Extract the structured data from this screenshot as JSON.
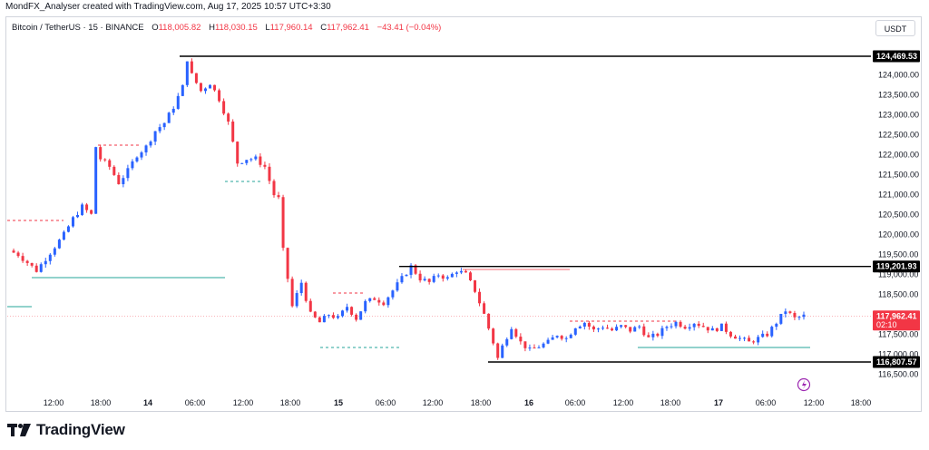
{
  "header": {
    "attribution": "MondFX_Analyser created with TradingView.com, Aug 17, 2025 10:57 UTC+3:30"
  },
  "legend": {
    "symbol": "Bitcoin / TetherUS · 15 · BINANCE",
    "open_label": "O",
    "open": "118,005.82",
    "high_label": "H",
    "high": "118,030.15",
    "low_label": "L",
    "low": "117,960.14",
    "close_label": "C",
    "close": "117,962.41",
    "change": "−43.41 (−0.04%)"
  },
  "currency": "USDT",
  "footer": {
    "brand": "TradingView"
  },
  "colors": {
    "up": "#2962ff",
    "down": "#f23645",
    "level_line": "#000000",
    "support_line": "#26a69a",
    "resistance_dash": "#f23645",
    "text": "#131722"
  },
  "chart_data": {
    "type": "candlestick",
    "symbol": "BTCUSDT",
    "timeframe": "15",
    "ylim": [
      116000,
      125200
    ],
    "x_ticks": [
      "12:00",
      "18:00",
      "14",
      "06:00",
      "12:00",
      "18:00",
      "15",
      "06:00",
      "12:00",
      "18:00",
      "16",
      "06:00",
      "12:00",
      "18:00",
      "17",
      "06:00",
      "12:00",
      "18:00"
    ],
    "y_ticks": [
      "124,000.00",
      "123,500.00",
      "123,000.00",
      "122,500.00",
      "122,000.00",
      "121,500.00",
      "121,000.00",
      "120,500.00",
      "120,000.00",
      "119,500.00",
      "119,000.00",
      "118,500.00",
      "117,500.00",
      "117,000.00",
      "116,500.00"
    ],
    "price_labels": [
      {
        "label": "124,469.53",
        "style": "level"
      },
      {
        "label": "119,201.93",
        "style": "level"
      },
      {
        "label": "117,962.41",
        "sub": "02:10",
        "style": "current"
      },
      {
        "label": "116,807.57",
        "style": "level"
      }
    ],
    "close_path": [
      [
        0,
        119600
      ],
      [
        2,
        119500
      ],
      [
        4,
        119300
      ],
      [
        6,
        119100
      ],
      [
        8,
        119400
      ],
      [
        10,
        119700
      ],
      [
        12,
        120000
      ],
      [
        14,
        120400
      ],
      [
        16,
        120700
      ],
      [
        18,
        120500
      ],
      [
        19,
        122200
      ],
      [
        20,
        121900
      ],
      [
        22,
        121700
      ],
      [
        24,
        121300
      ],
      [
        26,
        121600
      ],
      [
        28,
        122000
      ],
      [
        30,
        122200
      ],
      [
        32,
        122600
      ],
      [
        34,
        122800
      ],
      [
        36,
        123200
      ],
      [
        38,
        123700
      ],
      [
        39,
        124400
      ],
      [
        40,
        124000
      ],
      [
        42,
        123600
      ],
      [
        44,
        123800
      ],
      [
        46,
        123400
      ],
      [
        48,
        122800
      ],
      [
        50,
        121800
      ],
      [
        52,
        121900
      ],
      [
        54,
        121900
      ],
      [
        56,
        121700
      ],
      [
        58,
        121000
      ],
      [
        59,
        120900
      ],
      [
        60,
        119600
      ],
      [
        62,
        118200
      ],
      [
        64,
        118800
      ],
      [
        66,
        118000
      ],
      [
        68,
        117800
      ],
      [
        70,
        118000
      ],
      [
        72,
        117900
      ],
      [
        74,
        118200
      ],
      [
        76,
        117900
      ],
      [
        78,
        118300
      ],
      [
        80,
        118400
      ],
      [
        82,
        118300
      ],
      [
        84,
        118600
      ],
      [
        86,
        118900
      ],
      [
        88,
        119200
      ],
      [
        90,
        118900
      ],
      [
        92,
        118800
      ],
      [
        94,
        119000
      ],
      [
        96,
        118900
      ],
      [
        98,
        119100
      ],
      [
        100,
        119000
      ],
      [
        102,
        118600
      ],
      [
        104,
        118000
      ],
      [
        106,
        117300
      ],
      [
        107,
        116900
      ],
      [
        108,
        117200
      ],
      [
        110,
        117700
      ],
      [
        112,
        117300
      ],
      [
        114,
        117100
      ],
      [
        116,
        117200
      ],
      [
        118,
        117300
      ],
      [
        120,
        117500
      ],
      [
        122,
        117400
      ],
      [
        124,
        117700
      ],
      [
        126,
        117800
      ],
      [
        128,
        117600
      ],
      [
        130,
        117700
      ],
      [
        132,
        117600
      ],
      [
        134,
        117700
      ],
      [
        136,
        117600
      ],
      [
        138,
        117700
      ],
      [
        140,
        117400
      ],
      [
        142,
        117500
      ],
      [
        144,
        117700
      ],
      [
        146,
        117800
      ],
      [
        148,
        117700
      ],
      [
        150,
        117800
      ],
      [
        152,
        117700
      ],
      [
        154,
        117600
      ],
      [
        156,
        117700
      ],
      [
        158,
        117500
      ],
      [
        160,
        117400
      ],
      [
        162,
        117300
      ],
      [
        164,
        117400
      ],
      [
        166,
        117500
      ],
      [
        168,
        117800
      ],
      [
        170,
        118100
      ],
      [
        172,
        117900
      ],
      [
        174,
        117960
      ]
    ]
  }
}
